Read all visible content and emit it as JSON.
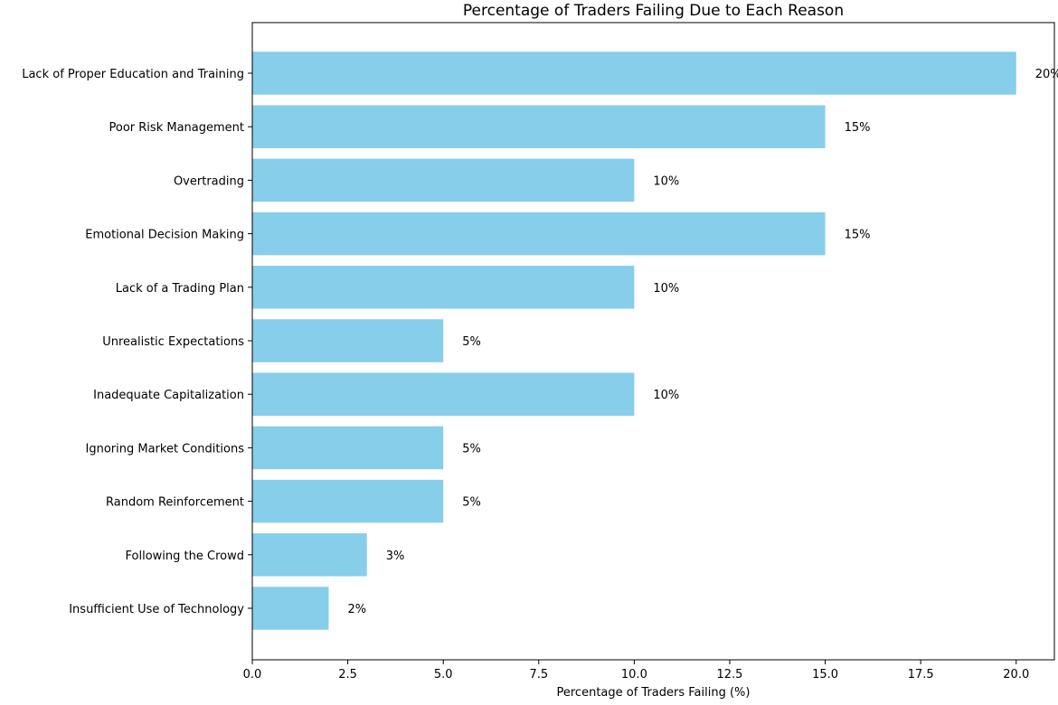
{
  "chart_data": {
    "type": "bar",
    "orientation": "horizontal",
    "title": "Percentage of Traders Failing Due to Each Reason",
    "xlabel": "Percentage of Traders Failing (%)",
    "ylabel": "",
    "xlim": [
      0,
      21
    ],
    "x_ticks": [
      0,
      2.5,
      5,
      7.5,
      10,
      12.5,
      15,
      17.5,
      20
    ],
    "x_tick_labels": [
      "0.0",
      "2.5",
      "5.0",
      "7.5",
      "10.0",
      "12.5",
      "15.0",
      "17.5",
      "20.0"
    ],
    "grid": false,
    "bar_color": "#87ceeb",
    "categories": [
      "Lack of Proper Education and Training",
      "Poor Risk Management",
      "Overtrading",
      "Emotional Decision Making",
      "Lack of a Trading Plan",
      "Unrealistic Expectations",
      "Inadequate Capitalization",
      "Ignoring Market Conditions",
      "Random Reinforcement",
      "Following the Crowd",
      "Insufficient Use of Technology"
    ],
    "values": [
      20,
      15,
      10,
      15,
      10,
      5,
      10,
      5,
      5,
      3,
      2
    ],
    "data_labels": [
      "20%",
      "15%",
      "10%",
      "15%",
      "10%",
      "5%",
      "10%",
      "5%",
      "5%",
      "3%",
      "2%"
    ]
  }
}
